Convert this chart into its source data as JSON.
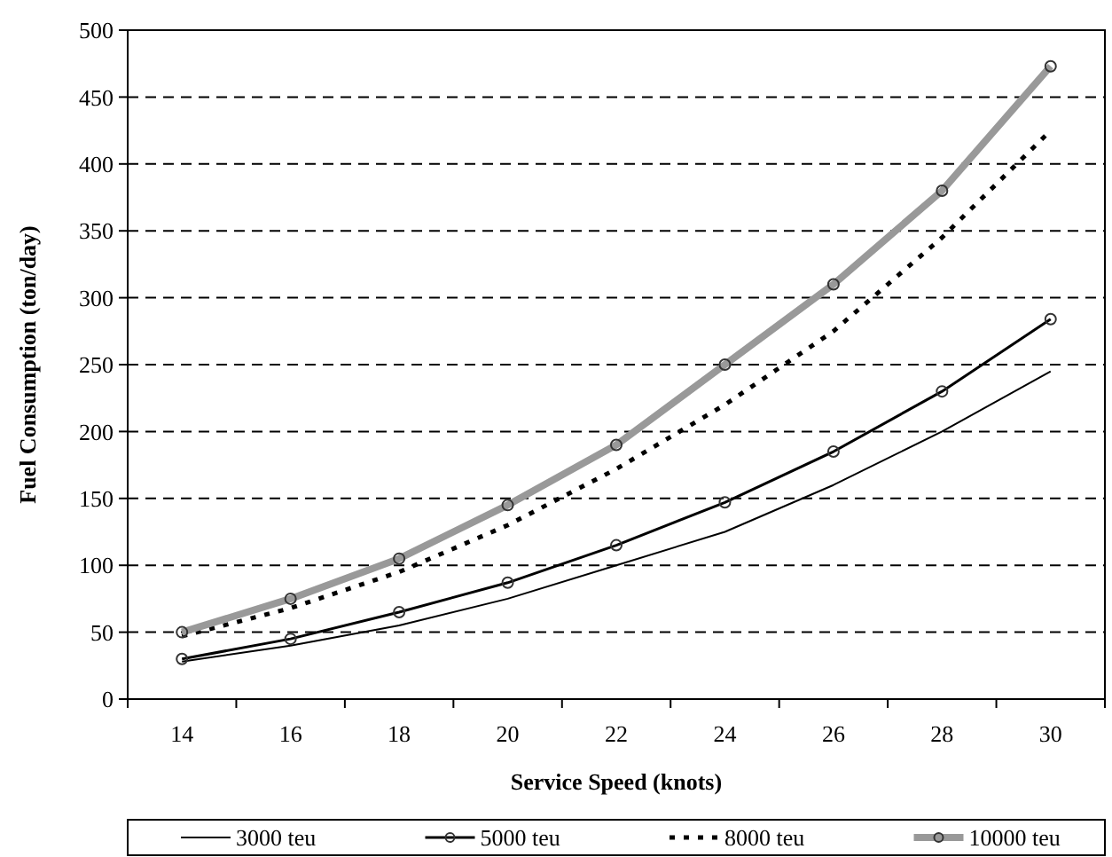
{
  "chart_data": {
    "type": "line",
    "xlabel": "Service Speed (knots)",
    "ylabel": "Fuel Consumption (ton/day)",
    "categories": [
      "14",
      "16",
      "18",
      "20",
      "22",
      "24",
      "26",
      "28",
      "30"
    ],
    "ylim": [
      0,
      500
    ],
    "yticks": [
      0,
      50,
      100,
      150,
      200,
      250,
      300,
      350,
      400,
      450,
      500
    ],
    "grid": "y",
    "legend": "bottom",
    "series": [
      {
        "name": "3000 teu",
        "color": "#000000",
        "marker": "none",
        "line_style": "solid",
        "values": [
          28,
          40,
          55,
          75,
          100,
          125,
          160,
          200,
          245
        ]
      },
      {
        "name": "5000 teu",
        "color": "#000000",
        "marker": "circle",
        "line_style": "solid",
        "values": [
          30,
          45,
          65,
          87,
          115,
          147,
          185,
          230,
          284
        ]
      },
      {
        "name": "8000 teu",
        "color": "#000000",
        "marker": "none",
        "line_style": "dotted",
        "values": [
          47,
          68,
          95,
          130,
          172,
          220,
          275,
          345,
          425
        ]
      },
      {
        "name": "10000 teu",
        "color": "#999999",
        "marker": "circle",
        "line_style": "solid",
        "values": [
          50,
          75,
          105,
          145,
          190,
          250,
          310,
          380,
          473
        ]
      }
    ]
  }
}
